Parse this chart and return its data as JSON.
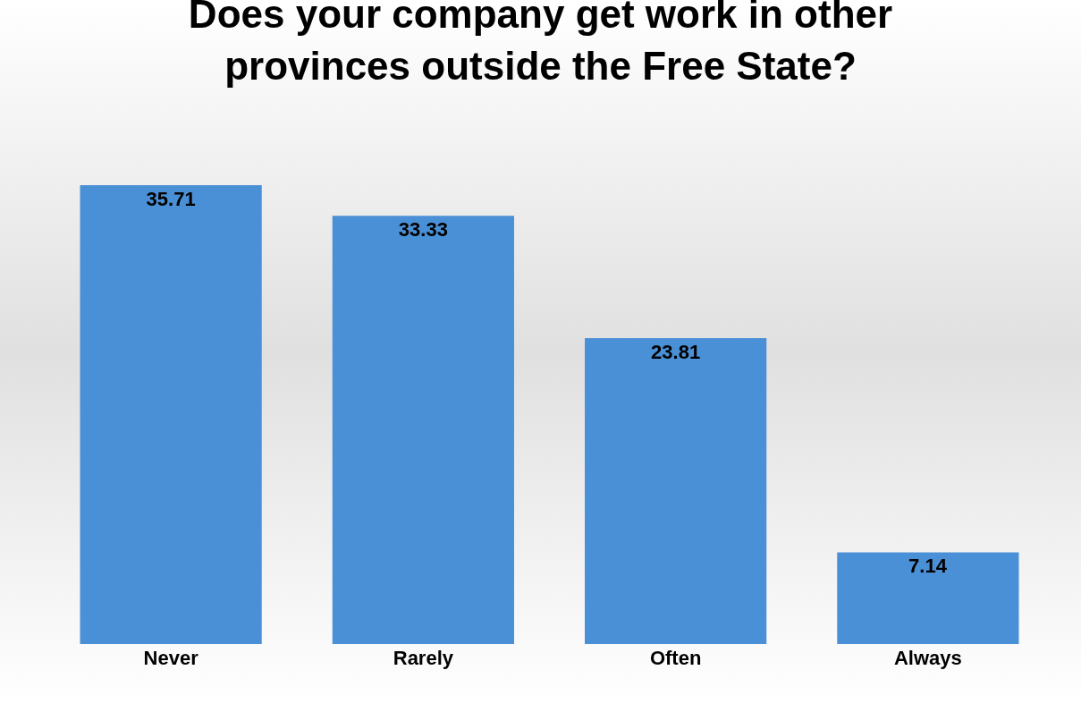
{
  "chart_data": {
    "type": "bar",
    "title": "Does your company get work in other provinces outside the Free State?",
    "categories": [
      "Never",
      "Rarely",
      "Often",
      "Always"
    ],
    "values": [
      35.71,
      33.33,
      23.81,
      7.14
    ],
    "color": "#4a90d6",
    "data_labels": true,
    "grid": false,
    "legend": false
  }
}
